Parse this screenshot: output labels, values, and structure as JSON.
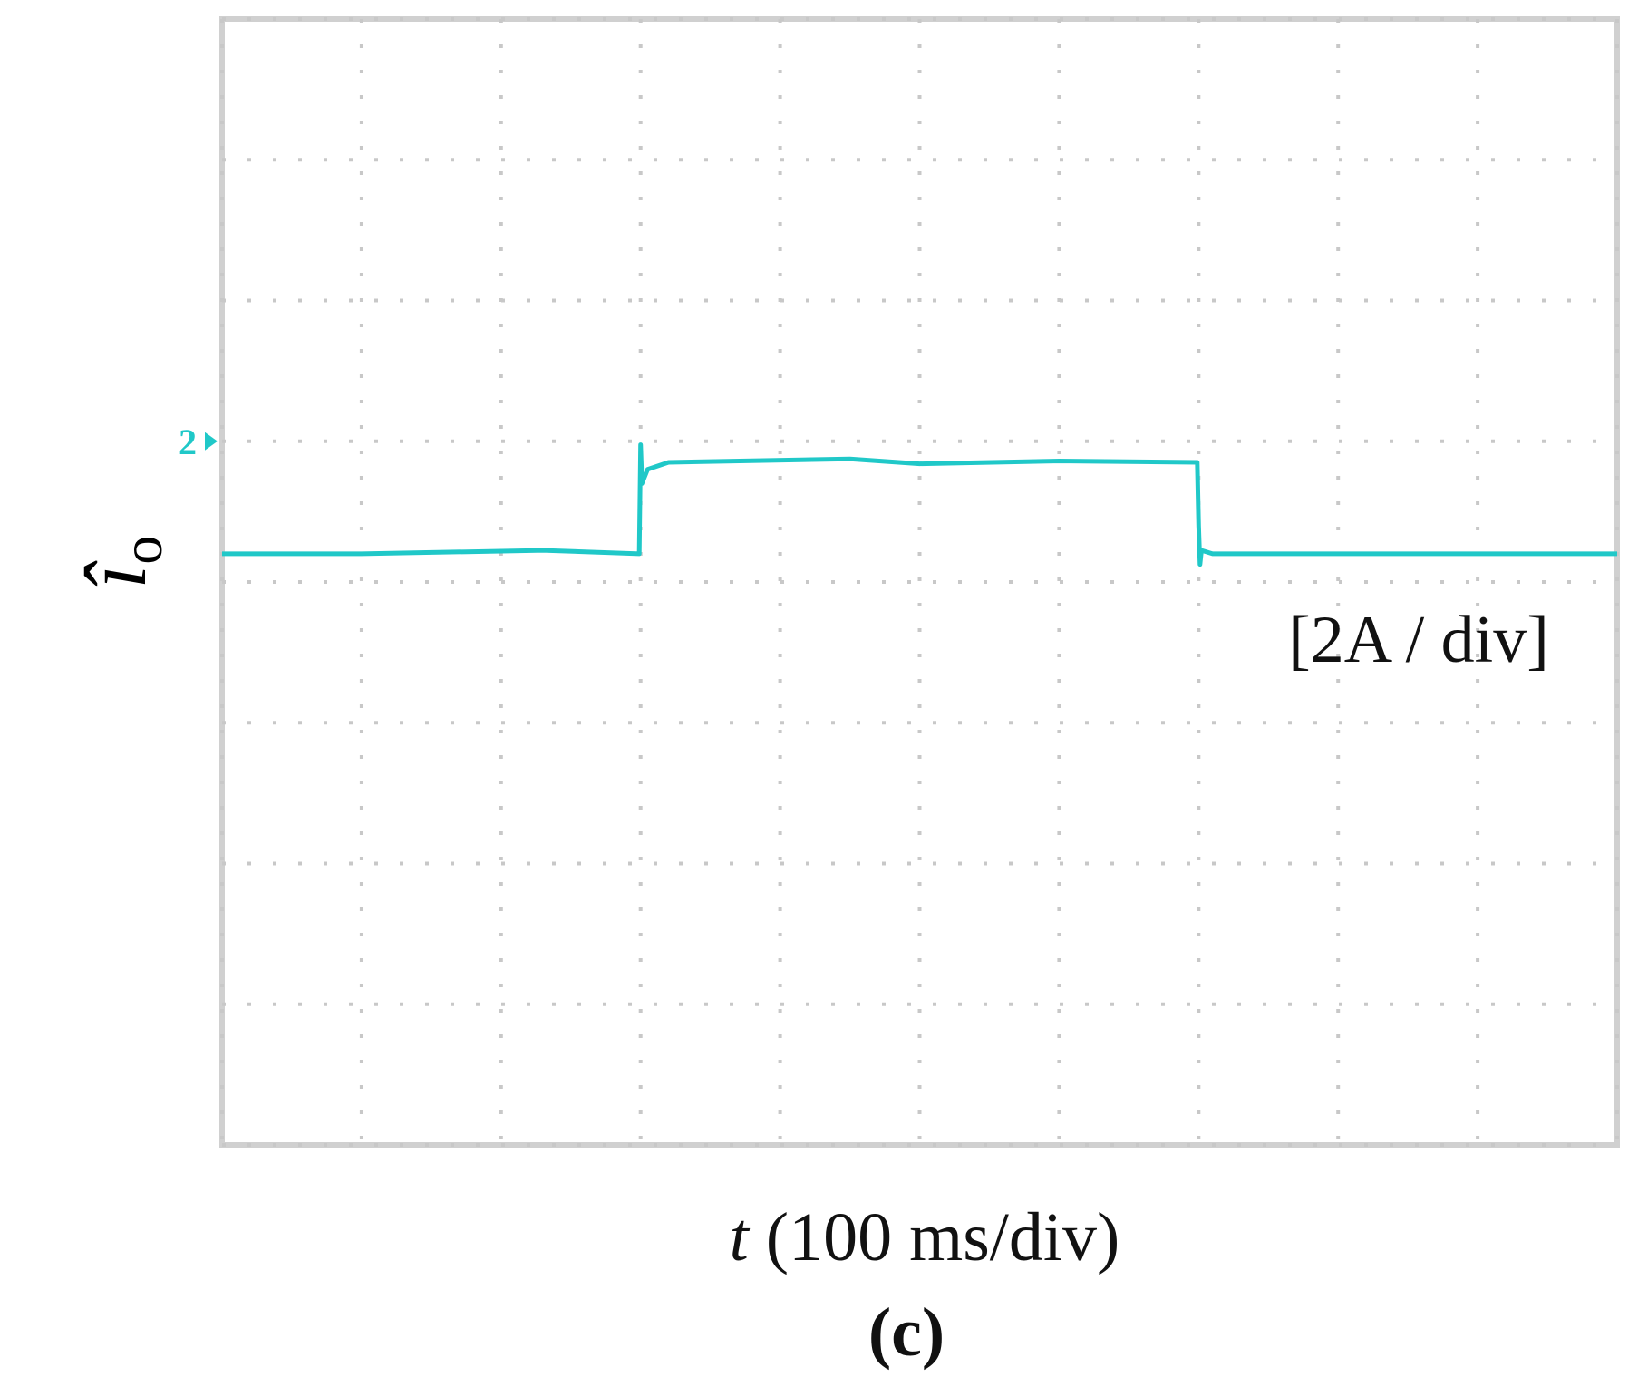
{
  "chart_data": {
    "type": "line",
    "y_label": "î",
    "y_label_sub": "o",
    "x_label_var": "t",
    "x_label_unit": "(100 ms/div)",
    "caption": "(c)",
    "scale_annotation": "[2A / div]",
    "channel_marker": "2",
    "xlim": [
      0,
      1000
    ],
    "ylim": [
      -10,
      6
    ],
    "xticks": [
      0,
      100,
      200,
      300,
      400,
      500,
      600,
      700,
      800,
      900,
      1000
    ],
    "yticks": [
      -10,
      -8,
      -6,
      -4,
      -2,
      0,
      2,
      4,
      6
    ],
    "grid": true,
    "x": [
      0,
      100,
      230,
      299,
      300,
      301,
      305,
      320,
      450,
      500,
      600,
      699,
      700,
      701,
      702,
      710,
      800,
      1000
    ],
    "series": [
      {
        "name": "io",
        "color": "#20c8c8",
        "values": [
          -1.6,
          -1.6,
          -1.55,
          -1.6,
          -0.05,
          -0.6,
          -0.4,
          -0.3,
          -0.25,
          -0.32,
          -0.28,
          -0.3,
          -1.2,
          -1.75,
          -1.55,
          -1.6,
          -1.6,
          -1.6
        ]
      }
    ]
  }
}
